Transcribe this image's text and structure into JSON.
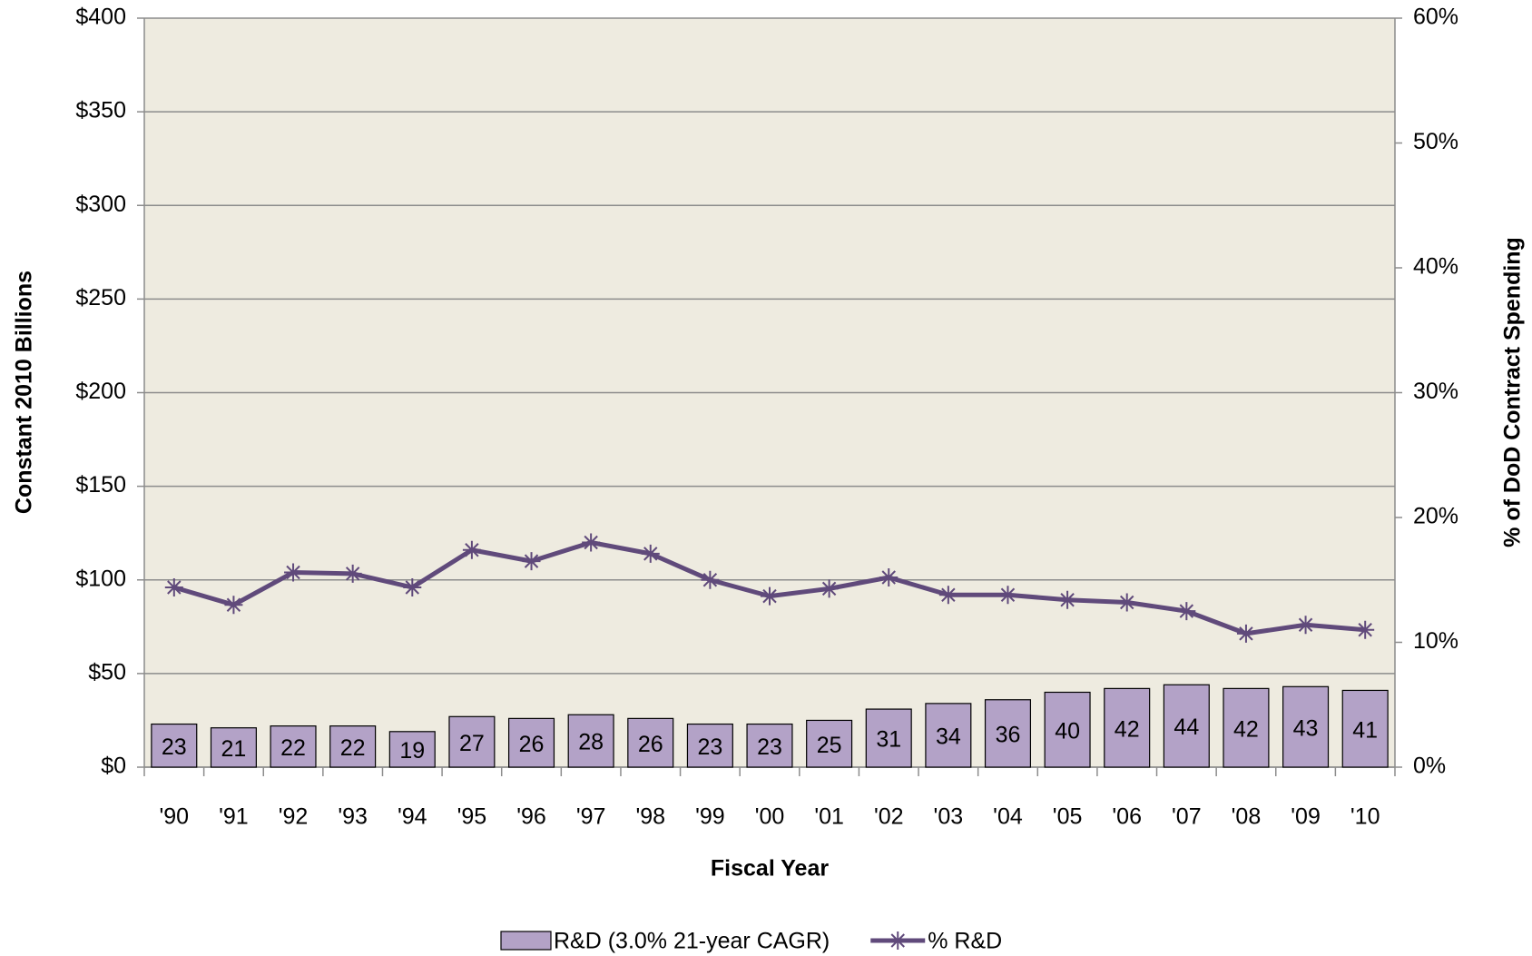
{
  "chart_data": {
    "type": "bar",
    "x_label": "Fiscal Year",
    "y_label": "Constant 2010 Billions",
    "y2_label": "% of DoD Contract Spending",
    "categories": [
      "'90",
      "'91",
      "'92",
      "'93",
      "'94",
      "'95",
      "'96",
      "'97",
      "'98",
      "'99",
      "'00",
      "'01",
      "'02",
      "'03",
      "'04",
      "'05",
      "'06",
      "'07",
      "'08",
      "'09",
      "'10"
    ],
    "series": [
      {
        "name": "R&D (3.0% 21-year CAGR)",
        "type": "bar",
        "color": "#b3a2c7",
        "values": [
          23,
          21,
          22,
          22,
          19,
          27,
          26,
          28,
          26,
          23,
          23,
          25,
          31,
          34,
          36,
          40,
          42,
          44,
          42,
          43,
          41
        ]
      },
      {
        "name": "% R&D",
        "type": "line",
        "axis": "y2",
        "color": "#604a7b",
        "values": [
          14.4,
          13.0,
          15.6,
          15.5,
          14.4,
          17.4,
          16.5,
          18.0,
          17.1,
          15.0,
          13.7,
          14.3,
          15.2,
          13.8,
          13.8,
          13.4,
          13.2,
          12.5,
          10.7,
          11.4,
          11.0
        ]
      }
    ],
    "ylim": [
      0,
      400
    ],
    "yticks": [
      {
        "value": 0,
        "label": "$0"
      },
      {
        "value": 50,
        "label": "$50"
      },
      {
        "value": 100,
        "label": "$100"
      },
      {
        "value": 150,
        "label": "$150"
      },
      {
        "value": 200,
        "label": "$200"
      },
      {
        "value": 250,
        "label": "$250"
      },
      {
        "value": 300,
        "label": "$300"
      },
      {
        "value": 350,
        "label": "$350"
      },
      {
        "value": 400,
        "label": "$400"
      }
    ],
    "y2lim": [
      0,
      60
    ],
    "y2ticks": [
      {
        "value": 0,
        "label": "0%"
      },
      {
        "value": 10,
        "label": "10%"
      },
      {
        "value": 20,
        "label": "20%"
      },
      {
        "value": 30,
        "label": "30%"
      },
      {
        "value": 40,
        "label": "40%"
      },
      {
        "value": 50,
        "label": "50%"
      },
      {
        "value": 60,
        "label": "60%"
      }
    ],
    "grid": true,
    "legend": "bottom"
  }
}
